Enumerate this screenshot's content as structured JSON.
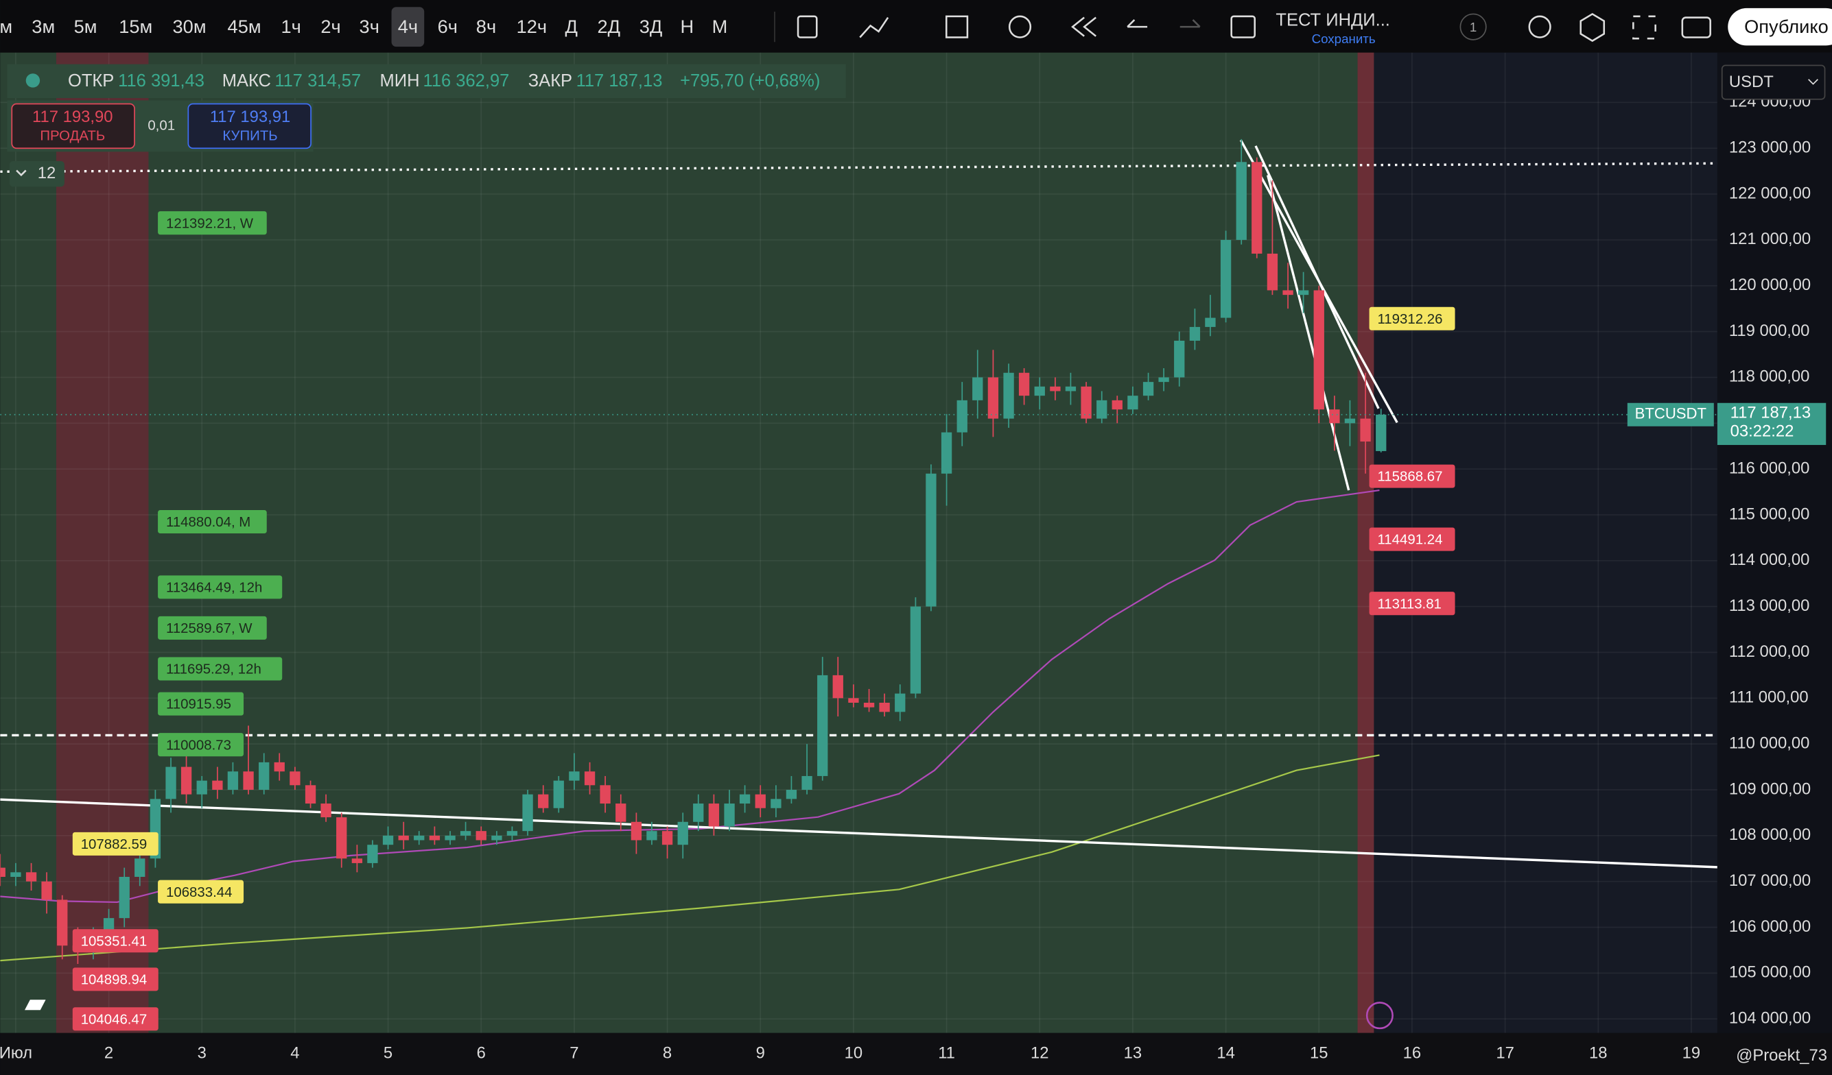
{
  "toolbar": {
    "intervals": [
      "м",
      "3м",
      "5м",
      "15м",
      "30м",
      "45м",
      "1ч",
      "2ч",
      "3ч",
      "4ч",
      "6ч",
      "8ч",
      "12ч",
      "Д",
      "2Д",
      "3Д",
      "Н",
      "М"
    ],
    "active_interval": 9,
    "layout_name": "ТЕСТ ИНДИ...",
    "save": "Сохранить",
    "badge": "1",
    "publish": "Опублико"
  },
  "legend": {
    "open_label": "ОТКР",
    "open": "116 391,43",
    "high_label": "МАКС",
    "high": "117 314,57",
    "low_label": "МИН",
    "low": "116 362,97",
    "close_label": "ЗАКР",
    "close": "117 187,13",
    "change": "+795,70 (+0,68%)"
  },
  "trade": {
    "sell_price": "117 193,90",
    "sell": "ПРОДАТЬ",
    "spread": "0,01",
    "buy_price": "117 193,91",
    "buy": "КУПИТЬ",
    "indicators": "12"
  },
  "currency": "USDT",
  "watermark": "@Proekt_73",
  "chart_data": {
    "type": "candlestick",
    "symbol": "BTCUSDT",
    "last_price": "117 187,13",
    "countdown": "03:22:22",
    "up_color": "#3a9c8a",
    "down_color": "#e2475a",
    "x": [
      0.833,
      1,
      1.167,
      1.333,
      1.5,
      1.667,
      1.833,
      2,
      2.167,
      2.333,
      2.5,
      2.667,
      2.833,
      3,
      3.167,
      3.333,
      3.5,
      3.667,
      3.833,
      4,
      4.167,
      4.333,
      4.5,
      4.667,
      4.833,
      5,
      5.167,
      5.333,
      5.5,
      5.667,
      5.833,
      6,
      6.167,
      6.333,
      6.5,
      6.667,
      6.833,
      7,
      7.167,
      7.333,
      7.5,
      7.667,
      7.833,
      8,
      8.167,
      8.333,
      8.5,
      8.667,
      8.833,
      9,
      9.167,
      9.333,
      9.5,
      9.667,
      9.833,
      10,
      10.167,
      10.333,
      10.5,
      10.667,
      10.833,
      11,
      11.167,
      11.333,
      11.5,
      11.667,
      11.833,
      12,
      12.167,
      12.333,
      12.5,
      12.667,
      12.833,
      13,
      13.167,
      13.333,
      13.5,
      13.667,
      13.833,
      14,
      14.167,
      14.333,
      14.5,
      14.667,
      14.833,
      15,
      15.167,
      15.333,
      15.5,
      15.667
    ],
    "candles": [
      [
        107300,
        107600,
        106900,
        107100
      ],
      [
        107100,
        107400,
        106900,
        107200
      ],
      [
        107200,
        107400,
        106800,
        107000
      ],
      [
        107000,
        107200,
        106300,
        106600
      ],
      [
        106600,
        106700,
        105300,
        105600
      ],
      [
        105600,
        106000,
        105200,
        105500
      ],
      [
        105500,
        106000,
        105300,
        105900
      ],
      [
        105900,
        106400,
        105500,
        106200
      ],
      [
        106200,
        107300,
        106000,
        107100
      ],
      [
        107100,
        107800,
        106900,
        107500
      ],
      [
        107500,
        109000,
        107300,
        108800
      ],
      [
        108800,
        109700,
        108500,
        109500
      ],
      [
        109500,
        109800,
        108700,
        108900
      ],
      [
        108900,
        109300,
        108600,
        109200
      ],
      [
        109200,
        109500,
        108800,
        109000
      ],
      [
        109000,
        109600,
        108900,
        109400
      ],
      [
        109400,
        110400,
        108900,
        109000
      ],
      [
        109000,
        109800,
        108900,
        109600
      ],
      [
        109600,
        109800,
        109200,
        109400
      ],
      [
        109400,
        109500,
        109000,
        109100
      ],
      [
        109100,
        109200,
        108600,
        108700
      ],
      [
        108700,
        108900,
        108300,
        108400
      ],
      [
        108400,
        108500,
        107300,
        107500
      ],
      [
        107500,
        107800,
        107200,
        107400
      ],
      [
        107400,
        107900,
        107300,
        107800
      ],
      [
        107800,
        108200,
        107700,
        108000
      ],
      [
        108000,
        108300,
        107700,
        107900
      ],
      [
        107900,
        108100,
        107800,
        108000
      ],
      [
        108000,
        108200,
        107800,
        107900
      ],
      [
        107900,
        108100,
        107800,
        108000
      ],
      [
        108000,
        108300,
        107900,
        108100
      ],
      [
        108100,
        108200,
        107800,
        107900
      ],
      [
        107900,
        108100,
        107800,
        108000
      ],
      [
        108000,
        108200,
        107900,
        108100
      ],
      [
        108100,
        109000,
        108000,
        108900
      ],
      [
        108900,
        109100,
        108500,
        108600
      ],
      [
        108600,
        109300,
        108500,
        109200
      ],
      [
        109200,
        109800,
        109000,
        109400
      ],
      [
        109400,
        109600,
        108900,
        109100
      ],
      [
        109100,
        109300,
        108500,
        108700
      ],
      [
        108700,
        108900,
        108100,
        108300
      ],
      [
        108300,
        108500,
        107600,
        107900
      ],
      [
        107900,
        108300,
        107800,
        108100
      ],
      [
        108100,
        108200,
        107500,
        107800
      ],
      [
        107800,
        108500,
        107500,
        108300
      ],
      [
        108300,
        108900,
        108100,
        108700
      ],
      [
        108700,
        108900,
        108000,
        108200
      ],
      [
        108200,
        109000,
        108100,
        108700
      ],
      [
        108700,
        109100,
        108500,
        108900
      ],
      [
        108900,
        109100,
        108400,
        108600
      ],
      [
        108600,
        109100,
        108400,
        108800
      ],
      [
        108800,
        109300,
        108700,
        109000
      ],
      [
        109000,
        110000,
        108900,
        109300
      ],
      [
        109300,
        111900,
        109200,
        111500
      ],
      [
        111500,
        111900,
        110600,
        111000
      ],
      [
        111000,
        111300,
        110800,
        110900
      ],
      [
        110900,
        111200,
        110700,
        110800
      ],
      [
        110900,
        111100,
        110600,
        110700
      ],
      [
        110700,
        111300,
        110500,
        111100
      ],
      [
        111100,
        113200,
        111000,
        113000
      ],
      [
        113000,
        116100,
        112900,
        115900
      ],
      [
        115900,
        117200,
        115200,
        116800
      ],
      [
        116800,
        117900,
        116500,
        117500
      ],
      [
        117500,
        118600,
        117100,
        118000
      ],
      [
        118000,
        118600,
        116700,
        117100
      ],
      [
        117100,
        118300,
        116900,
        118100
      ],
      [
        118100,
        118200,
        117400,
        117600
      ],
      [
        117600,
        118000,
        117300,
        117800
      ],
      [
        117800,
        118000,
        117500,
        117700
      ],
      [
        117700,
        118100,
        117400,
        117800
      ],
      [
        117800,
        117900,
        117000,
        117100
      ],
      [
        117100,
        117700,
        117000,
        117500
      ],
      [
        117500,
        117600,
        117000,
        117300
      ],
      [
        117300,
        117800,
        117200,
        117600
      ],
      [
        117600,
        118100,
        117500,
        117900
      ],
      [
        117900,
        118200,
        117700,
        118000
      ],
      [
        118000,
        119000,
        117800,
        118800
      ],
      [
        118800,
        119500,
        118600,
        119100
      ],
      [
        119100,
        119800,
        118900,
        119300
      ],
      [
        119300,
        121200,
        119200,
        121000
      ],
      [
        121000,
        123200,
        120900,
        122700
      ],
      [
        122700,
        122800,
        120600,
        120700
      ],
      [
        120700,
        122300,
        119800,
        119900
      ],
      [
        119900,
        120500,
        119500,
        119800
      ],
      [
        119800,
        120300,
        119400,
        119900
      ],
      [
        119900,
        120000,
        117000,
        117300
      ],
      [
        117300,
        117600,
        116400,
        117000
      ],
      [
        117000,
        117500,
        116500,
        117100
      ],
      [
        117100,
        118100,
        115900,
        116600
      ],
      [
        116391.43,
        117314.57,
        116362.97,
        117187.13
      ]
    ],
    "xlim": [
      0.833,
      19.28
    ],
    "ylim": [
      103693,
      125089
    ],
    "xticks": [
      {
        "value": 1,
        "label": "Июл"
      },
      2,
      3,
      4,
      5,
      6,
      7,
      8,
      9,
      10,
      11,
      12,
      13,
      14,
      15,
      16,
      17,
      18,
      19
    ],
    "yticks": [
      {
        "value": 104000,
        "label": "104 000,00"
      },
      {
        "value": 105000,
        "label": "105 000,00"
      },
      {
        "value": 106000,
        "label": "106 000,00"
      },
      {
        "value": 107000,
        "label": "107 000,00"
      },
      {
        "value": 108000,
        "label": "108 000,00"
      },
      {
        "value": 109000,
        "label": "109 000,00"
      },
      {
        "value": 110000,
        "label": "110 000,00"
      },
      {
        "value": 111000,
        "label": "111 000,00"
      },
      {
        "value": 112000,
        "label": "112 000,00"
      },
      {
        "value": 113000,
        "label": "113 000,00"
      },
      {
        "value": 114000,
        "label": "114 000,00"
      },
      {
        "value": 115000,
        "label": "115 000,00"
      },
      {
        "value": 116000,
        "label": "116 000,00"
      },
      {
        "value": 117000,
        "label": "117 000,00"
      },
      {
        "value": 118000,
        "label": "118 000,00"
      },
      {
        "value": 119000,
        "label": "119 000,00"
      },
      {
        "value": 120000,
        "label": "120 000,00"
      },
      {
        "value": 121000,
        "label": "121 000,00"
      },
      {
        "value": 122000,
        "label": "122 000,00"
      },
      {
        "value": 123000,
        "label": "123 000,00"
      },
      {
        "value": 124000,
        "label": "124 000,00"
      }
    ],
    "grid": true,
    "overlays": [
      {
        "color": "#b04ab8",
        "x": [
          0.833,
          1.46,
          2.09,
          2.72,
          3.35,
          3.98,
          4.6,
          5.85,
          7.11,
          8.36,
          9.62,
          10.49,
          10.87,
          11.5,
          12.13,
          12.75,
          13.38,
          13.88,
          14.26,
          14.76,
          15.65
        ],
        "values": [
          106674,
          106572,
          106547,
          106877,
          107132,
          107437,
          107565,
          107743,
          108100,
          108151,
          108406,
          108915,
          109425,
          110698,
          111845,
          112736,
          113500,
          114010,
          114774,
          115283,
          115537
        ]
      },
      {
        "color": "#a6c84a",
        "x": [
          0.833,
          3.35,
          5.85,
          8.36,
          10.49,
          12.13,
          14.01,
          14.76,
          15.65
        ],
        "values": [
          105273,
          105655,
          105986,
          106419,
          106826,
          107641,
          108915,
          109425,
          109756
        ]
      }
    ],
    "drawings": [
      {
        "style": "dotted",
        "color": "#ffffff",
        "x": [
          0.833,
          19.28
        ],
        "values": [
          122490,
          122670
        ]
      },
      {
        "style": "dashed",
        "color": "#ffffff",
        "x": [
          0.833,
          19.28
        ],
        "values": [
          110190,
          110190
        ]
      },
      {
        "style": "solid",
        "color": "#ffffff",
        "x": [
          0.833,
          19.28
        ],
        "values": [
          108788,
          107311
        ]
      },
      {
        "style": "solid",
        "color": "#ffffff",
        "x": [
          14.16,
          15.84
        ],
        "values": [
          123178,
          117015
        ]
      },
      {
        "style": "solid",
        "color": "#ffffff",
        "x": [
          14.32,
          15.64
        ],
        "values": [
          123051,
          117320
        ]
      },
      {
        "style": "solid",
        "color": "#ffffff",
        "x": [
          14.45,
          15.32
        ],
        "values": [
          122414,
          115537
        ]
      }
    ],
    "tags": [
      {
        "text": "121392.21, W",
        "color": "#4caf50"
      },
      {
        "text": "114880.04, M",
        "color": "#4caf50"
      },
      {
        "text": "113464.49, 12h",
        "color": "#4caf50"
      },
      {
        "text": "112589.67, W",
        "color": "#4caf50"
      },
      {
        "text": "111695.29, 12h",
        "color": "#4caf50"
      },
      {
        "text": "110915.95",
        "color": "#4caf50"
      },
      {
        "text": "110008.73",
        "color": "#4caf50"
      },
      {
        "text": "107882.59",
        "color": "#f5e663"
      },
      {
        "text": "106833.44",
        "color": "#f5e663"
      },
      {
        "text": "105351.41",
        "color": "#e2475a"
      },
      {
        "text": "104898.94",
        "color": "#e2475a"
      },
      {
        "text": "104046.47",
        "color": "#e2475a"
      },
      {
        "text": "119312.26",
        "color": "#f5e663"
      },
      {
        "text": "115868.67",
        "color": "#e2475a"
      },
      {
        "text": "114491.24",
        "color": "#e2475a"
      },
      {
        "text": "113113.81",
        "color": "#e2475a"
      }
    ]
  }
}
